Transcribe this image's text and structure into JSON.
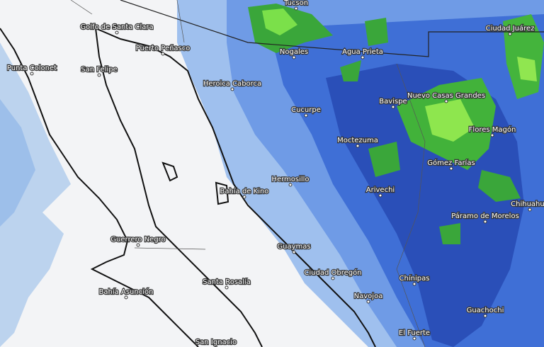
{
  "places": [
    {
      "name": "Tucson"
    },
    {
      "name": "Golfo de Santa Clara"
    },
    {
      "name": "Puerto Peñasco"
    },
    {
      "name": "Punta Colonet"
    },
    {
      "name": "San Felipe"
    },
    {
      "name": "Heroica Caborca"
    },
    {
      "name": "Nogales"
    },
    {
      "name": "Agua Prieta"
    },
    {
      "name": "Ciudad Juárez"
    },
    {
      "name": "Cucurpe"
    },
    {
      "name": "Bavispe"
    },
    {
      "name": "Nuevo Casas Grandes"
    },
    {
      "name": "Flores Magón"
    },
    {
      "name": "Moctezuma"
    },
    {
      "name": "Gómez Farías"
    },
    {
      "name": "Hermosillo"
    },
    {
      "name": "Bahía de Kino"
    },
    {
      "name": "Arivechi"
    },
    {
      "name": "Chihuahua"
    },
    {
      "name": "Páramo de Morelos"
    },
    {
      "name": "Guerrero Negro"
    },
    {
      "name": "Guaymas"
    },
    {
      "name": "Ciudad Obregón"
    },
    {
      "name": "Santa Rosalía"
    },
    {
      "name": "Bahía Asunción"
    },
    {
      "name": "Navojoa"
    },
    {
      "name": "Chínipas"
    },
    {
      "name": "Guachochi"
    },
    {
      "name": "El Fuerte"
    },
    {
      "name": "San Ignacio"
    }
  ]
}
